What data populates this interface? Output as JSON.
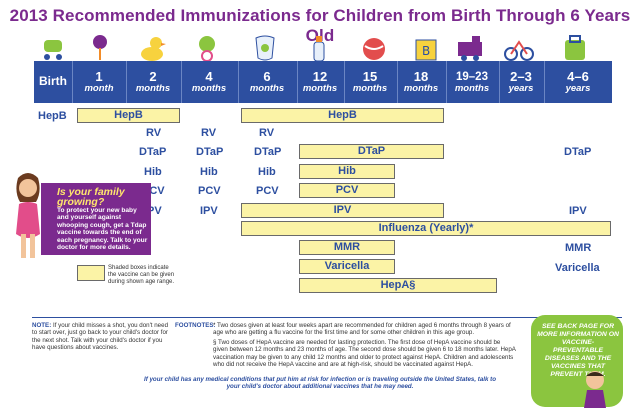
{
  "title": "2013 Recommended Immunizations for Children from Birth Through 6 Years Old",
  "ages": [
    {
      "n": "Birth",
      "u": ""
    },
    {
      "n": "1",
      "u": "month"
    },
    {
      "n": "2",
      "u": "months"
    },
    {
      "n": "4",
      "u": "months"
    },
    {
      "n": "6",
      "u": "months"
    },
    {
      "n": "12",
      "u": "months"
    },
    {
      "n": "15",
      "u": "months"
    },
    {
      "n": "18",
      "u": "months"
    },
    {
      "n": "19–23",
      "u": "months"
    },
    {
      "n": "2–3",
      "u": "years"
    },
    {
      "n": "4–6",
      "u": "years"
    }
  ],
  "vaccines": {
    "hepb_birth": "HepB",
    "hepb_bar1": "HepB",
    "hepb_bar2": "HepB",
    "rv": "RV",
    "dtap": "DTaP",
    "dtap_bar": "DTaP",
    "hib": "Hib",
    "hib_bar": "Hib",
    "pcv": "PCV",
    "pcv_bar": "PCV",
    "ipv": "IPV",
    "ipv_bar": "IPV",
    "influenza_bar": "Influenza (Yearly)*",
    "mmr_bar": "MMR",
    "mmr": "MMR",
    "varicella_bar": "Varicella",
    "varicella": "Varicella",
    "hepa_bar": "HepA§"
  },
  "callout": {
    "heading": "Is your family growing?",
    "body": "To protect your new baby and yourself against whooping cough, get a Tdap vaccine towards the end of each pregnancy. Talk to your doctor for more details."
  },
  "legend": "Shaded boxes indicate the vaccine can be given during shown age range.",
  "note": {
    "label": "NOTE:",
    "text": "If your child misses a shot, you don't need to start over, just go back to your child's doctor for the next shot. Talk with your child's doctor if you have questions about vaccines."
  },
  "footnotes": {
    "label": "FOOTNOTES:",
    "fn1": "* Two doses given at least four weeks apart are recommended for children aged 6 months through 8 years of age who are getting a flu vaccine for the first time and for some other children in this age group.",
    "fn2": "§ Two doses of HepA vaccine are needed for lasting protection. The first dose of HepA vaccine should be given between 12 months and 23 months of age. The second dose should be given 6 to 18 months later. HepA vaccination may be given to any child 12 months and older to protect against HepA. Children and adolescents who did not receive the HepA vaccine and are at high-risk, should be vaccinated against HepA."
  },
  "closing": "If your child has any medical conditions that put him at risk for infection or is traveling outside the United States, talk to your child's doctor about additional vaccines that he may need.",
  "see_back": "See back page for more information on vaccine-preventable diseases and the vaccines that prevent them.",
  "colors": {
    "title": "#7b2a8e",
    "band": "#2d4fa0",
    "bar": "#fbf3a6",
    "callout": "#7b2a8e",
    "see_back": "#8bc53f"
  }
}
